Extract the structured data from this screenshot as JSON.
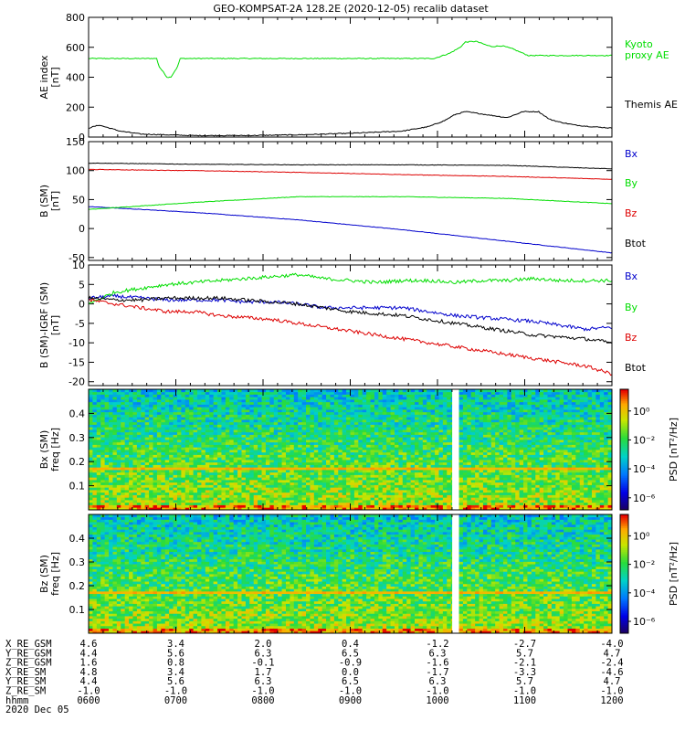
{
  "title": "GEO-KOMPSAT-2A 128.2E (2020-12-05) recalib dataset",
  "chart_data": [
    {
      "type": "line",
      "panel": "ae",
      "ylabel": "AE index",
      "yunit": "[nT]",
      "ylim": [
        0,
        800
      ],
      "yticks": [
        "0",
        "200",
        "400",
        "600",
        "800"
      ],
      "series": [
        {
          "name": "Kyoto proxy AE",
          "label_lines": [
            "Kyoto",
            "proxy AE"
          ],
          "color": "#00dd00",
          "x": [
            0,
            0.1,
            0.13,
            0.135,
            0.15,
            0.157,
            0.17,
            0.175,
            0.2,
            0.5,
            0.66,
            0.69,
            0.71,
            0.72,
            0.74,
            0.76,
            0.77,
            0.79,
            0.81,
            0.84,
            1.0
          ],
          "y": [
            525,
            525,
            525,
            470,
            400,
            400,
            470,
            525,
            525,
            525,
            525,
            560,
            600,
            635,
            640,
            615,
            605,
            610,
            590,
            545,
            545
          ]
        },
        {
          "name": "Themis AE",
          "label_lines": [
            "Themis AE"
          ],
          "color": "#000000",
          "x": [
            0,
            0.02,
            0.04,
            0.06,
            0.1,
            0.15,
            0.2,
            0.3,
            0.4,
            0.5,
            0.6,
            0.65,
            0.68,
            0.7,
            0.72,
            0.74,
            0.76,
            0.8,
            0.83,
            0.86,
            0.88,
            0.9,
            0.93,
            0.96,
            1.0
          ],
          "y": [
            60,
            80,
            60,
            40,
            20,
            15,
            10,
            10,
            15,
            25,
            40,
            70,
            110,
            150,
            170,
            160,
            150,
            130,
            170,
            170,
            120,
            100,
            80,
            70,
            60
          ]
        }
      ]
    },
    {
      "type": "line",
      "panel": "b",
      "ylabel": "B (SM)",
      "yunit": "[nT]",
      "ylim": [
        -55,
        150
      ],
      "yticks": [
        "-50",
        "0",
        "50",
        "100",
        "150"
      ],
      "series": [
        {
          "name": "Bx",
          "label_lines": [
            "Bx"
          ],
          "color": "#0000cc",
          "x": [
            0,
            0.2,
            0.4,
            0.6,
            0.8,
            1.0
          ],
          "y": [
            38,
            28,
            15,
            -2,
            -22,
            -42
          ]
        },
        {
          "name": "By",
          "label_lines": [
            "By"
          ],
          "color": "#00dd00",
          "x": [
            0,
            0.2,
            0.4,
            0.6,
            0.8,
            1.0
          ],
          "y": [
            33,
            45,
            55,
            55,
            52,
            43
          ]
        },
        {
          "name": "Bz",
          "label_lines": [
            "Bz"
          ],
          "color": "#dd0000",
          "x": [
            0,
            0.2,
            0.4,
            0.6,
            0.8,
            1.0
          ],
          "y": [
            102,
            100,
            97,
            93,
            90,
            85
          ]
        },
        {
          "name": "Btot",
          "label_lines": [
            "Btot"
          ],
          "color": "#000000",
          "x": [
            0,
            0.2,
            0.4,
            0.6,
            0.8,
            1.0
          ],
          "y": [
            113,
            111,
            110,
            110,
            109,
            103
          ]
        }
      ]
    },
    {
      "type": "line",
      "panel": "db",
      "ylabel": "B (SM)-IGRF (SM)",
      "yunit": "[nT]",
      "ylim": [
        -21,
        10
      ],
      "yticks": [
        "-20",
        "-15",
        "-10",
        "-5",
        "0",
        "5",
        "10"
      ],
      "series": [
        {
          "name": "Bx",
          "label_lines": [
            "Bx"
          ],
          "color": "#0000cc",
          "x": [
            0,
            0.05,
            0.1,
            0.15,
            0.2,
            0.25,
            0.3,
            0.35,
            0.4,
            0.45,
            0.5,
            0.55,
            0.6,
            0.65,
            0.7,
            0.75,
            0.8,
            0.85,
            0.9,
            0.95,
            1.0
          ],
          "y": [
            1.5,
            2,
            1.5,
            1,
            1,
            1,
            0.5,
            0.5,
            0,
            -1,
            -1,
            -1,
            -1,
            -2,
            -3,
            -3.5,
            -4,
            -4.5,
            -5.5,
            -6.5,
            -6
          ]
        },
        {
          "name": "By",
          "label_lines": [
            "By"
          ],
          "color": "#00dd00",
          "x": [
            0,
            0.05,
            0.1,
            0.15,
            0.2,
            0.25,
            0.3,
            0.35,
            0.4,
            0.45,
            0.5,
            0.55,
            0.6,
            0.65,
            0.7,
            0.75,
            0.8,
            0.85,
            0.9,
            0.95,
            1.0
          ],
          "y": [
            0,
            3,
            4,
            5,
            5.5,
            6,
            6.5,
            7,
            7.5,
            6.5,
            6,
            5.5,
            6,
            6,
            5.5,
            6,
            6,
            6.5,
            6,
            6,
            6
          ]
        },
        {
          "name": "Bz",
          "label_lines": [
            "Bz"
          ],
          "color": "#dd0000",
          "x": [
            0,
            0.05,
            0.1,
            0.15,
            0.2,
            0.25,
            0.3,
            0.35,
            0.4,
            0.45,
            0.5,
            0.55,
            0.6,
            0.65,
            0.7,
            0.75,
            0.8,
            0.85,
            0.9,
            0.95,
            1.0
          ],
          "y": [
            1,
            0,
            -1,
            -2,
            -2,
            -3,
            -3.5,
            -4,
            -5,
            -6,
            -7,
            -8,
            -9,
            -10,
            -11,
            -12,
            -13,
            -14,
            -15,
            -16,
            -18
          ]
        },
        {
          "name": "Btot",
          "label_lines": [
            "Btot"
          ],
          "color": "#000000",
          "x": [
            0,
            0.05,
            0.1,
            0.15,
            0.2,
            0.25,
            0.3,
            0.35,
            0.4,
            0.45,
            0.5,
            0.55,
            0.6,
            0.65,
            0.7,
            0.75,
            0.8,
            0.85,
            0.9,
            0.95,
            1.0
          ],
          "y": [
            1.5,
            1,
            1,
            1.5,
            1.5,
            1.5,
            1,
            0.5,
            0,
            -1,
            -2,
            -2.5,
            -3,
            -4,
            -5,
            -6,
            -7,
            -8,
            -8.5,
            -9,
            -10
          ]
        }
      ]
    },
    {
      "type": "heatmap",
      "panel": "bx-spec",
      "ylabel": "Bx (SM)",
      "yunit": "freq [Hz]",
      "ylim": [
        0,
        0.5
      ],
      "yticks": [
        "0.1",
        "0.2",
        "0.3",
        "0.4"
      ],
      "colorbar_label": "PSD [nT²/Hz]",
      "colorbar_ticks": [
        "10⁰",
        "10⁻²",
        "10⁻⁴",
        "10⁻⁶"
      ],
      "gap_at_fraction": 0.7
    },
    {
      "type": "heatmap",
      "panel": "bz-spec",
      "ylabel": "Bz (SM)",
      "yunit": "freq [Hz]",
      "ylim": [
        0,
        0.5
      ],
      "yticks": [
        "0.1",
        "0.2",
        "0.3",
        "0.4"
      ],
      "colorbar_label": "PSD [nT²/Hz]",
      "colorbar_ticks": [
        "10⁰",
        "10⁻²",
        "10⁻⁴",
        "10⁻⁶"
      ],
      "gap_at_fraction": 0.7
    }
  ],
  "x_axis": {
    "row_labels": [
      "X_RE_GSM",
      "Y_RE_GSM",
      "Z_RE_GSM",
      "X_RE_SM",
      "Y_RE_SM",
      "Z_RE_SM",
      "hhmm"
    ],
    "columns": [
      [
        "4.6",
        "4.4",
        "1.6",
        "4.8",
        "4.4",
        "-1.0",
        "0600"
      ],
      [
        "3.4",
        "5.6",
        "0.8",
        "3.4",
        "5.6",
        "-1.0",
        "0700"
      ],
      [
        "2.0",
        "6.3",
        "-0.1",
        "1.7",
        "6.3",
        "-1.0",
        "0800"
      ],
      [
        "0.4",
        "6.5",
        "-0.9",
        "0.0",
        "6.5",
        "-1.0",
        "0900"
      ],
      [
        "-1.2",
        "6.3",
        "-1.6",
        "-1.7",
        "6.3",
        "-1.0",
        "1000"
      ],
      [
        "-2.7",
        "5.7",
        "-2.1",
        "-3.3",
        "5.7",
        "-1.0",
        "1100"
      ],
      [
        "-4.0",
        "4.7",
        "-2.4",
        "-4.6",
        "4.7",
        "-1.0",
        "1200"
      ]
    ],
    "date": "2020 Dec 05"
  }
}
